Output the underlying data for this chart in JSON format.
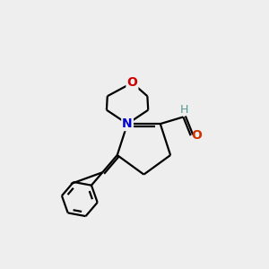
{
  "background_color": "#eeeeee",
  "bond_color": "#000000",
  "N_color": "#0000cc",
  "O_morph_color": "#cc0000",
  "O_cho_color": "#cc3300",
  "H_cho_color": "#559999",
  "line_width": 1.6,
  "figsize": [
    3.0,
    3.0
  ],
  "dpi": 100,
  "xlim": [
    0,
    10
  ],
  "ylim": [
    0,
    10
  ]
}
